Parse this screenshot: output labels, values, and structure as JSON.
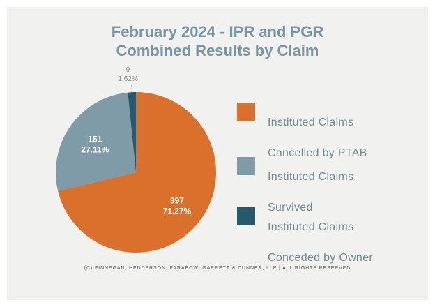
{
  "page": {
    "title_line1": "February 2024 - IPR and PGR",
    "title_line2": "Combined Results by Claim",
    "footer": "(C) FINNEGAN, HENDERSON, FARABOW, GARRETT & DUNNER, LLP | ALL RIGHTS RESERVED"
  },
  "chart_data": {
    "type": "pie",
    "title": "February 2024 - IPR and PGR Combined Results by Claim",
    "slices": [
      {
        "label": "Instituted Claims Cancelled by PTAB",
        "value": 397,
        "percent": "71.27%",
        "color": "#d9702b"
      },
      {
        "label": "Instituted Claims Survived",
        "value": 151,
        "percent": "27.11%",
        "color": "#7e9ba7"
      },
      {
        "label": "Instituted Claims Conceded by Owner",
        "value": 9,
        "percent": "1.62%",
        "color": "#26596b"
      }
    ],
    "legend_position": "right"
  },
  "legend": [
    {
      "line1": "Instituted Claims",
      "line2": "Cancelled by PTAB",
      "color": "#d9702b"
    },
    {
      "line1": "Instituted Claims",
      "line2": "Survived",
      "color": "#7e9ba7"
    },
    {
      "line1": "Instituted Claims",
      "line2": "Conceded by Owner",
      "color": "#26596b"
    }
  ]
}
